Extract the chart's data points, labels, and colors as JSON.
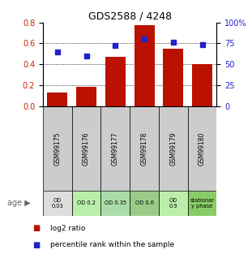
{
  "title": "GDS2588 / 4248",
  "samples": [
    "GSM99175",
    "GSM99176",
    "GSM99177",
    "GSM99178",
    "GSM99179",
    "GSM99180"
  ],
  "log2_ratio": [
    0.13,
    0.19,
    0.47,
    0.77,
    0.55,
    0.4
  ],
  "percentile_rank": [
    65,
    60,
    73,
    80,
    76,
    74
  ],
  "bar_color": "#bb1100",
  "dot_color": "#2222cc",
  "sample_bg_color": "#cccccc",
  "age_labels": [
    "OD\n0.03",
    "OD 0.2",
    "OD 0.35",
    "OD 0.6",
    "OD\n0.9",
    "stationar\ny phase"
  ],
  "age_bg_colors": [
    "#dddddd",
    "#bbeeaa",
    "#aaddaa",
    "#99cc88",
    "#bbeeaa",
    "#88cc66"
  ],
  "left_ylim": [
    0,
    0.8
  ],
  "right_ylim": [
    0,
    100
  ],
  "left_yticks": [
    0,
    0.2,
    0.4,
    0.6,
    0.8
  ],
  "right_yticks": [
    0,
    25,
    50,
    75,
    100
  ],
  "right_yticklabels": [
    "0",
    "25",
    "50",
    "75",
    "100%"
  ],
  "left_ycolor": "#cc2200",
  "right_ycolor": "#2222cc",
  "legend_labels": [
    "log2 ratio",
    "percentile rank within the sample"
  ],
  "age_label": "age"
}
